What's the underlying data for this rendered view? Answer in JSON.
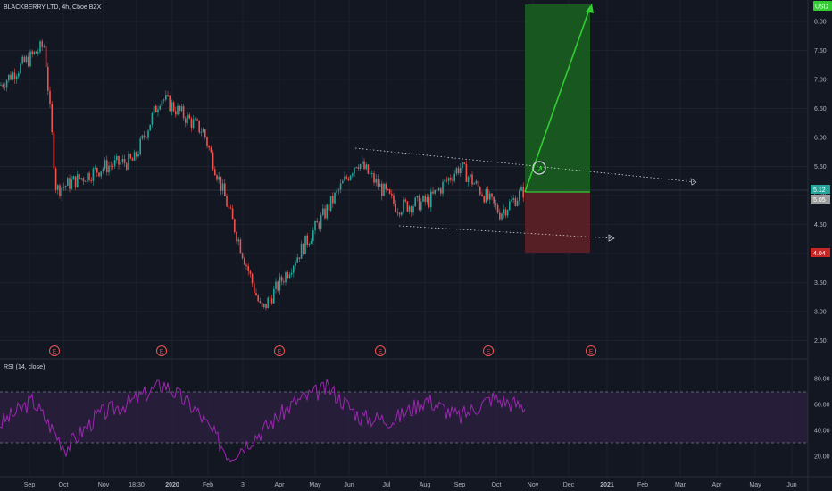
{
  "header": {
    "symbol_title": "BLACKBERRY LTD, 4h, Cboe BZX",
    "currency": "USD"
  },
  "rsi": {
    "label": "RSI (14, close)",
    "upper": 70,
    "lower": 30,
    "ticks": [
      "80.00",
      "60.00",
      "40.00",
      "20.00"
    ]
  },
  "price_axis": {
    "ticks": [
      "8.00",
      "7.50",
      "7.00",
      "6.50",
      "6.00",
      "5.50",
      "5.00",
      "4.50",
      "4.00",
      "3.50",
      "3.00",
      "2.50"
    ]
  },
  "time_axis": {
    "ticks": [
      "Sep",
      "Oct",
      "Nov",
      "18:30",
      "2020",
      "Feb",
      "3",
      "Apr",
      "May",
      "Jun",
      "Jul",
      "Aug",
      "Sep",
      "Oct",
      "Nov",
      "Dec",
      "2021",
      "Feb",
      "Mar",
      "Apr",
      "May",
      "Jun"
    ]
  },
  "earnings_marker": "E",
  "earnings_count": 6,
  "price_labels": {
    "last": "5.12",
    "current": "5.05",
    "stop": "4.04"
  },
  "colors": {
    "up": "#26a69a",
    "down": "#ef5350",
    "rsi_line": "#9c27b0",
    "profit_zone": "#1b5e20",
    "loss_zone": "#5d2026",
    "arrow": "#33cc33",
    "earnings": "#ef5350"
  },
  "chart_data": {
    "type": "candlestick",
    "title": "",
    "xlabel": "",
    "ylabel": "",
    "ylim": [
      2.2,
      8.3
    ],
    "rsi_ylim": [
      10,
      90
    ],
    "price_path": [
      {
        "x": "Aug",
        "y": 6.9
      },
      {
        "x": "Sep",
        "y": 7.6
      },
      {
        "x": "Oct",
        "y": 5.1
      },
      {
        "x": "Nov",
        "y": 5.5
      },
      {
        "x": "18:30",
        "y": 5.6
      },
      {
        "x": "2020",
        "y": 6.7
      },
      {
        "x": "Feb",
        "y": 6.1
      },
      {
        "x": "3",
        "y": 3.0
      },
      {
        "x": "Apr",
        "y": 3.6
      },
      {
        "x": "May",
        "y": 4.6
      },
      {
        "x": "Jun",
        "y": 5.6
      },
      {
        "x": "Jul",
        "y": 4.8
      },
      {
        "x": "Aug",
        "y": 4.9
      },
      {
        "x": "Sep",
        "y": 5.5
      },
      {
        "x": "Oct",
        "y": 4.7
      },
      {
        "x": "Oct",
        "y": 5.1
      }
    ],
    "position": {
      "entry": 5.1,
      "target": 8.3,
      "stop": 4.04
    },
    "upper_trendline": {
      "from": 5.82,
      "to": 5.15
    },
    "lower_trendline": {
      "from": 4.48,
      "to": 4.3
    },
    "rsi_path": [
      45,
      63,
      26,
      52,
      62,
      76,
      55,
      20,
      40,
      62,
      73,
      50,
      48,
      64,
      50,
      65,
      58
    ]
  }
}
